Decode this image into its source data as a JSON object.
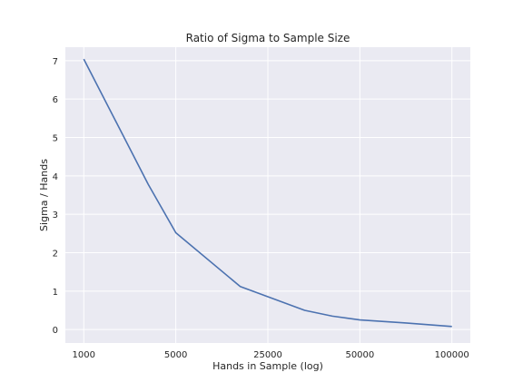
{
  "chart_data": {
    "type": "line",
    "title": "Ratio of Sigma to Sample Size",
    "xlabel": "Hands in Sample (log)",
    "ylabel": "Sigma / Hands",
    "x_ticks": [
      "1000",
      "5000",
      "25000",
      "50000",
      "100000"
    ],
    "y_ticks": [
      0,
      1,
      2,
      3,
      4,
      5,
      6,
      7
    ],
    "ylim": [
      -0.35,
      7.35
    ],
    "xlim": [
      -0.2,
      4.2
    ],
    "grid": true,
    "colors": {
      "background": "#eaeaf2",
      "grid": "#ffffff",
      "line": "#4c72b0"
    },
    "series": [
      {
        "points": [
          [
            0,
            7.04
          ],
          [
            0.7,
            3.78
          ],
          [
            1,
            2.52
          ],
          [
            1.7,
            1.12
          ],
          [
            2.4,
            0.5
          ],
          [
            2.7,
            0.35
          ],
          [
            3,
            0.25
          ],
          [
            3.5,
            0.17
          ],
          [
            4,
            0.08
          ]
        ]
      }
    ]
  }
}
